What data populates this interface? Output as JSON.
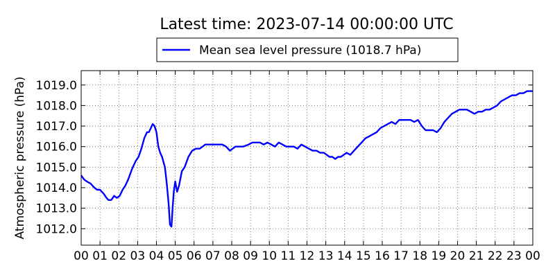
{
  "chart_data": {
    "type": "line",
    "title": "Latest time: 2023-07-14 00:00:00 UTC",
    "xlabel": "",
    "ylabel": "Atmospheric pressure (hPa)",
    "xlim": [
      0,
      24
    ],
    "ylim": [
      1011.2,
      1019.7
    ],
    "grid": true,
    "legend_position": "top-center",
    "color": "#0000ff",
    "x_tick_labels": [
      "00",
      "01",
      "02",
      "03",
      "04",
      "05",
      "06",
      "07",
      "08",
      "09",
      "10",
      "11",
      "12",
      "13",
      "14",
      "15",
      "16",
      "17",
      "18",
      "19",
      "20",
      "21",
      "22",
      "23",
      "00"
    ],
    "y_ticks": [
      1012.0,
      1013.0,
      1014.0,
      1015.0,
      1016.0,
      1017.0,
      1018.0,
      1019.0
    ],
    "y_tick_labels": [
      "1012.0",
      "1013.0",
      "1014.0",
      "1015.0",
      "1016.0",
      "1017.0",
      "1018.0",
      "1019.0"
    ],
    "series": [
      {
        "name": "Mean sea level pressure (1018.7 hPa)",
        "x": [
          0.0,
          0.15,
          0.3,
          0.5,
          0.7,
          0.85,
          1.0,
          1.1,
          1.2,
          1.35,
          1.45,
          1.6,
          1.75,
          1.9,
          2.05,
          2.2,
          2.35,
          2.5,
          2.7,
          2.9,
          3.05,
          3.2,
          3.35,
          3.5,
          3.6,
          3.7,
          3.8,
          3.9,
          4.0,
          4.1,
          4.2,
          4.3,
          4.45,
          4.55,
          4.65,
          4.72,
          4.8,
          4.85,
          4.92,
          5.0,
          5.1,
          5.2,
          5.35,
          5.5,
          5.7,
          5.9,
          6.1,
          6.3,
          6.6,
          7.0,
          7.3,
          7.5,
          7.7,
          7.9,
          8.2,
          8.6,
          8.9,
          9.1,
          9.3,
          9.5,
          9.7,
          9.9,
          10.1,
          10.3,
          10.5,
          10.7,
          10.9,
          11.1,
          11.3,
          11.5,
          11.7,
          11.9,
          12.1,
          12.3,
          12.5,
          12.7,
          12.9,
          13.05,
          13.2,
          13.35,
          13.5,
          13.65,
          13.8,
          13.95,
          14.1,
          14.3,
          14.5,
          14.7,
          14.9,
          15.1,
          15.3,
          15.5,
          15.7,
          15.9,
          16.1,
          16.3,
          16.5,
          16.7,
          16.9,
          17.1,
          17.3,
          17.5,
          17.7,
          17.9,
          18.1,
          18.3,
          18.5,
          18.7,
          18.9,
          19.1,
          19.3,
          19.5,
          19.7,
          19.9,
          20.1,
          20.3,
          20.5,
          20.7,
          20.9,
          21.1,
          21.3,
          21.5,
          21.7,
          21.9,
          22.1,
          22.3,
          22.5,
          22.7,
          22.9,
          23.1,
          23.3,
          23.5,
          23.7,
          23.9,
          24.0
        ],
        "values": [
          1014.6,
          1014.4,
          1014.3,
          1014.2,
          1014.0,
          1013.9,
          1013.9,
          1013.8,
          1013.7,
          1013.5,
          1013.4,
          1013.4,
          1013.6,
          1013.5,
          1013.6,
          1013.9,
          1014.1,
          1014.4,
          1014.9,
          1015.3,
          1015.5,
          1015.9,
          1016.4,
          1016.7,
          1016.7,
          1016.9,
          1017.1,
          1017.0,
          1016.7,
          1016.0,
          1015.7,
          1015.5,
          1015.0,
          1014.2,
          1013.2,
          1012.2,
          1012.1,
          1012.9,
          1013.8,
          1014.3,
          1013.8,
          1014.1,
          1014.8,
          1015.0,
          1015.5,
          1015.8,
          1015.9,
          1015.9,
          1016.1,
          1016.1,
          1016.1,
          1016.1,
          1016.0,
          1015.8,
          1016.0,
          1016.0,
          1016.1,
          1016.2,
          1016.2,
          1016.2,
          1016.1,
          1016.2,
          1016.1,
          1016.0,
          1016.2,
          1016.1,
          1016.0,
          1016.0,
          1016.0,
          1015.9,
          1016.1,
          1016.0,
          1015.9,
          1015.8,
          1015.8,
          1015.7,
          1015.7,
          1015.6,
          1015.5,
          1015.5,
          1015.4,
          1015.5,
          1015.5,
          1015.6,
          1015.7,
          1015.6,
          1015.8,
          1016.0,
          1016.2,
          1016.4,
          1016.5,
          1016.6,
          1016.7,
          1016.9,
          1017.0,
          1017.1,
          1017.2,
          1017.1,
          1017.3,
          1017.3,
          1017.3,
          1017.3,
          1017.2,
          1017.3,
          1017.0,
          1016.8,
          1016.8,
          1016.8,
          1016.7,
          1016.9,
          1017.2,
          1017.4,
          1017.6,
          1017.7,
          1017.8,
          1017.8,
          1017.8,
          1017.7,
          1017.6,
          1017.7,
          1017.7,
          1017.8,
          1017.8,
          1017.9,
          1018.0,
          1018.2,
          1018.3,
          1018.4,
          1018.5,
          1018.5,
          1018.6,
          1018.6,
          1018.7,
          1018.7,
          1018.7
        ]
      }
    ]
  }
}
